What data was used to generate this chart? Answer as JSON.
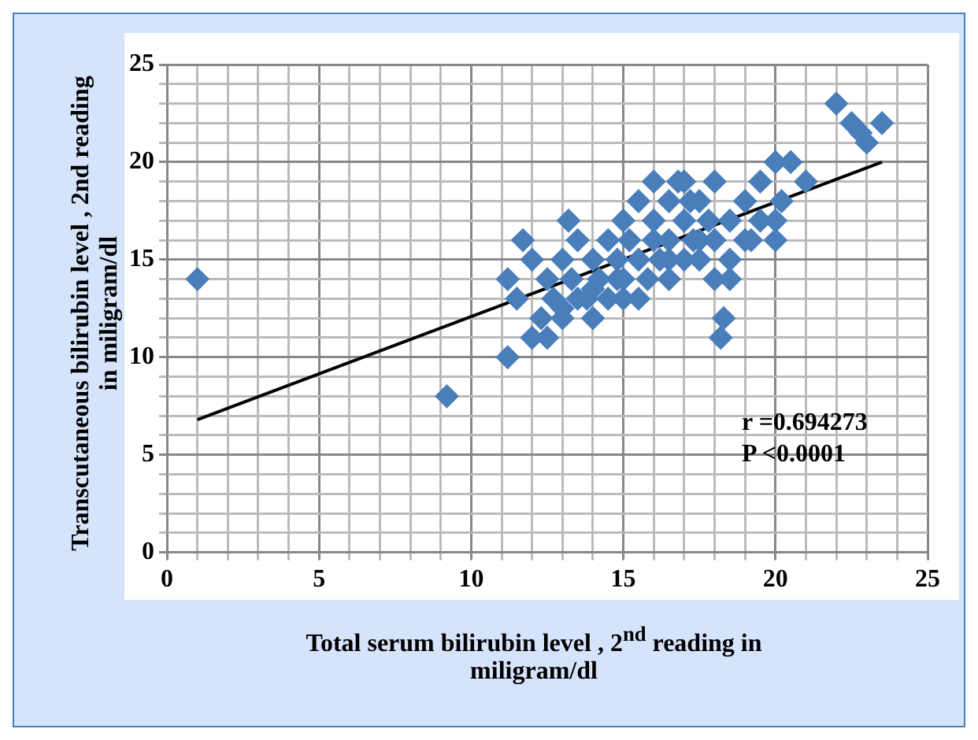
{
  "chart_data": {
    "type": "scatter",
    "xlabel": "Total serum bilirubin level , 2$^{nd}$ reading in miligram/dl",
    "ylabel": "Transcutaneous bilirubin level , 2nd reading in miligram/dl",
    "xlim": [
      0,
      25
    ],
    "ylim": [
      0,
      25
    ],
    "xticks": [
      0,
      5,
      10,
      15,
      20,
      25
    ],
    "yticks": [
      0,
      5,
      10,
      15,
      20,
      25
    ],
    "grid": true,
    "legend": false,
    "marker": "diamond",
    "series": [
      {
        "type": "scatter",
        "color": "#4a7ebb",
        "x": [
          1,
          9.2,
          11.2,
          11.2,
          11.7,
          11.5,
          12,
          12,
          12.3,
          12.5,
          12.7,
          13,
          13,
          13.2,
          13.3,
          13.5,
          13.5,
          13.8,
          14,
          14,
          14.2,
          14.5,
          14.5,
          14.8,
          15,
          15,
          15,
          15.2,
          15.5,
          15.5,
          15.8,
          16,
          16,
          16,
          16.2,
          16.5,
          16.5,
          16.5,
          16.8,
          17,
          17,
          17,
          17.2,
          17.5,
          17.5,
          17.5,
          17.8,
          18,
          18,
          18,
          18.2,
          18.3,
          18.5,
          18.5,
          19,
          19,
          19.5,
          19.5,
          20,
          20,
          20,
          20.2,
          20.5,
          21,
          22,
          22.5,
          22.8,
          23,
          23.5,
          12.5,
          13,
          14,
          15.5,
          16.5,
          18.5,
          19.2,
          17.3,
          14.8
        ],
        "values": [
          14,
          8,
          10,
          14,
          16,
          13,
          11,
          15,
          12,
          14,
          13,
          12,
          15,
          17,
          14,
          13,
          16,
          13,
          15,
          12,
          14,
          13,
          16,
          15,
          14,
          17,
          13,
          16,
          15,
          18,
          14,
          16,
          17,
          19,
          15,
          16,
          18,
          14,
          19,
          17,
          15,
          19,
          18,
          16,
          18,
          15,
          17,
          19,
          14,
          16,
          11,
          12,
          15,
          17,
          16,
          18,
          17,
          19,
          17,
          20,
          16,
          18,
          20,
          19,
          23,
          22,
          21.5,
          21,
          22,
          11,
          12.5,
          13.5,
          13,
          15,
          14,
          16,
          16,
          14
        ]
      },
      {
        "type": "line",
        "color": "#000000",
        "marker": "none",
        "x": [
          1,
          23.5
        ],
        "values": [
          6.8,
          20
        ]
      }
    ],
    "annotations": [
      "r =0.694273",
      "P <0.0001"
    ]
  }
}
